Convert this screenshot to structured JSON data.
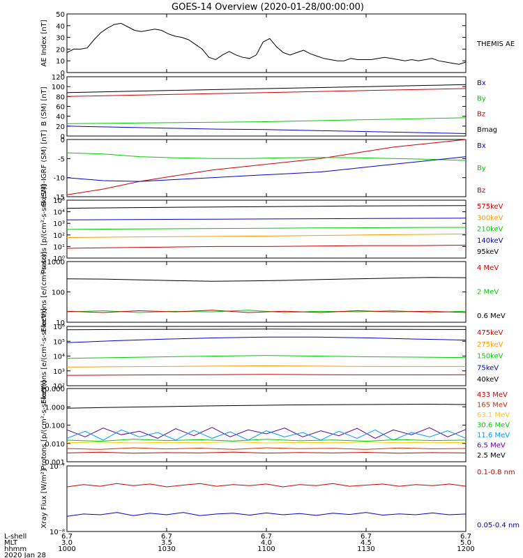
{
  "title": "GOES-14 Overview (2020-01-28/00:00:00)",
  "chart_data": [
    {
      "type": "line",
      "ylabel": "AE Index [nT]",
      "ylog": false,
      "ylim": [
        0,
        50
      ],
      "yticks": [
        "0",
        "10",
        "20",
        "30",
        "40",
        "50"
      ],
      "legend": [
        {
          "name": "THEMIS AE",
          "color": "#000000"
        }
      ],
      "series": [
        {
          "name": "THEMIS AE",
          "color": "#000000",
          "values": [
            17,
            20,
            20,
            21,
            28,
            34,
            38,
            41,
            42,
            39,
            36,
            35,
            36,
            37,
            36,
            33,
            31,
            30,
            28,
            24,
            20,
            13,
            11,
            15,
            18,
            15,
            13,
            12,
            15,
            26,
            29,
            22,
            17,
            15,
            17,
            19,
            16,
            14,
            12,
            11,
            10,
            10,
            12,
            11,
            11,
            11,
            12,
            13,
            12,
            11,
            10,
            11,
            10,
            11,
            12,
            10,
            9,
            8,
            7,
            9
          ]
        }
      ]
    },
    {
      "type": "line",
      "ylabel": "B (SM) [nT]",
      "ylog": false,
      "ylim": [
        0,
        120
      ],
      "yticks": [
        "0",
        "20",
        "40",
        "60",
        "80",
        "100",
        "120"
      ],
      "legend": [
        {
          "name": "Bx",
          "color": "#0000cc"
        },
        {
          "name": "By",
          "color": "#00cc00"
        },
        {
          "name": "Bz",
          "color": "#cc0000"
        },
        {
          "name": "Bmag",
          "color": "#000000"
        }
      ],
      "series": [
        {
          "name": "Bmag",
          "color": "#000000",
          "values": [
            88,
            90,
            92,
            94,
            96,
            98,
            100,
            102,
            104
          ]
        },
        {
          "name": "Bz",
          "color": "#cc0000",
          "values": [
            80,
            82,
            84,
            86,
            88,
            90,
            92,
            94,
            96
          ]
        },
        {
          "name": "By",
          "color": "#00cc00",
          "values": [
            25,
            26,
            27,
            28,
            29,
            31,
            33,
            35,
            37
          ]
        },
        {
          "name": "Bx",
          "color": "#0000cc",
          "values": [
            20,
            18,
            16,
            14,
            13,
            11,
            9,
            7,
            5
          ]
        }
      ]
    },
    {
      "type": "line",
      "ylabel": "B (SM)-IGRF (SM) [nT]",
      "ylog": false,
      "ylim": [
        -15,
        0
      ],
      "yticks": [
        "-15",
        "-10",
        "-5",
        "0"
      ],
      "legend": [
        {
          "name": "Bx",
          "color": "#0000cc"
        },
        {
          "name": "By",
          "color": "#00cc00"
        },
        {
          "name": "Bz",
          "color": "#cc0000"
        }
      ],
      "series": [
        {
          "name": "Bz",
          "color": "#cc0000",
          "values": [
            -14.5,
            -13,
            -11,
            -9.5,
            -8,
            -7,
            -6,
            -5,
            -3.5,
            -2,
            -1,
            0
          ]
        },
        {
          "name": "By",
          "color": "#00cc00",
          "values": [
            -3.5,
            -3.8,
            -4.5,
            -4.8,
            -5,
            -5,
            -4.8,
            -4.7,
            -4.8,
            -5,
            -5.2,
            -5.5
          ]
        },
        {
          "name": "Bx",
          "color": "#0000cc",
          "values": [
            -10,
            -10.8,
            -11,
            -10.5,
            -10,
            -9.5,
            -9,
            -8.5,
            -7.5,
            -6.5,
            -5.5,
            -4.5
          ]
        }
      ]
    },
    {
      "type": "line",
      "ylabel": "Protons [p/(cm²-s-sr-keV)]",
      "ylog": true,
      "ylim": [
        1,
        100000
      ],
      "yticks": [
        "10⁰",
        "10¹",
        "10²",
        "10³",
        "10⁴",
        "10⁵"
      ],
      "legend": [
        {
          "name": "575keV",
          "color": "#cc0000"
        },
        {
          "name": "300keV",
          "color": "#ff9900"
        },
        {
          "name": "210keV",
          "color": "#00cc00"
        },
        {
          "name": "140keV",
          "color": "#0000cc"
        },
        {
          "name": "95keV",
          "color": "#000000"
        }
      ],
      "series": [
        {
          "name": "95keV",
          "color": "#000000",
          "values": [
            20000,
            22000,
            24000,
            26000,
            28000,
            30000,
            32000,
            33000,
            34000
          ]
        },
        {
          "name": "140keV",
          "color": "#0000cc",
          "values": [
            2000,
            2100,
            2200,
            2300,
            2400,
            2500,
            2600,
            2700,
            2800
          ]
        },
        {
          "name": "210keV",
          "color": "#00cc00",
          "values": [
            300,
            320,
            340,
            360,
            380,
            400,
            420,
            440,
            450
          ]
        },
        {
          "name": "300keV",
          "color": "#ff9900",
          "values": [
            60,
            65,
            70,
            75,
            80,
            90,
            100,
            110,
            120
          ]
        },
        {
          "name": "575keV",
          "color": "#cc0000",
          "values": [
            7,
            8,
            9,
            10,
            10,
            11,
            12,
            12,
            13
          ]
        }
      ]
    },
    {
      "type": "line",
      "ylabel": "Electrons [e/(cm²-s-sr)]",
      "ylog": true,
      "ylim": [
        10,
        1000
      ],
      "yticks": [
        "10",
        "100",
        "1000"
      ],
      "legend": [
        {
          "name": "4 MeV",
          "color": "#cc0000"
        },
        {
          "name": "2 MeV",
          "color": "#00cc00"
        },
        {
          "name": "0.6 MeV",
          "color": "#000000"
        }
      ],
      "series": [
        {
          "name": "0.6 MeV",
          "color": "#000000",
          "values": [
            270,
            265,
            250,
            235,
            225,
            230,
            240,
            255,
            270,
            285,
            300,
            295
          ]
        },
        {
          "name": "2 MeV",
          "color": "#00cc00",
          "values": [
            22,
            24,
            21,
            23,
            22,
            25,
            21,
            23,
            22,
            24,
            21,
            23
          ]
        },
        {
          "name": "4 MeV",
          "color": "#cc0000",
          "values": [
            23,
            21,
            24,
            22,
            25,
            21,
            23,
            21,
            24,
            22,
            23,
            21
          ]
        }
      ]
    },
    {
      "type": "line",
      "ylabel": "Electrons [e/(cm²-s-sr-keV)]",
      "ylog": true,
      "ylim": [
        100,
        1000000
      ],
      "yticks": [
        "10²",
        "10³",
        "10⁴",
        "10⁵",
        "10⁶"
      ],
      "legend": [
        {
          "name": "475keV",
          "color": "#cc0000"
        },
        {
          "name": "275keV",
          "color": "#ff9900"
        },
        {
          "name": "150keV",
          "color": "#00cc00"
        },
        {
          "name": "75keV",
          "color": "#0000cc"
        },
        {
          "name": "40keV",
          "color": "#000000"
        }
      ],
      "series": [
        {
          "name": "40keV",
          "color": "#000000",
          "values": [
            600000,
            620000,
            640000,
            650000,
            660000,
            650000,
            640000,
            630000,
            620000
          ]
        },
        {
          "name": "75keV",
          "color": "#0000cc",
          "values": [
            80000,
            110000,
            140000,
            170000,
            190000,
            190000,
            170000,
            140000,
            120000
          ]
        },
        {
          "name": "150keV",
          "color": "#00cc00",
          "values": [
            7000,
            8000,
            9000,
            10000,
            11000,
            10000,
            9000,
            8500,
            8000
          ]
        },
        {
          "name": "275keV",
          "color": "#ff9900",
          "values": [
            1800,
            1900,
            2000,
            2100,
            2200,
            2100,
            2000,
            2000,
            2000
          ]
        },
        {
          "name": "475keV",
          "color": "#cc0000",
          "values": [
            500,
            520,
            540,
            560,
            580,
            560,
            540,
            540,
            550
          ]
        }
      ]
    },
    {
      "type": "line",
      "ylabel": "Protons [p/(cm²-s-sr-keV)]",
      "ylog": true,
      "ylim": [
        0.001,
        100
      ],
      "yticks": [
        "0.001",
        "0.010",
        "0.100",
        "1.000",
        "10.000"
      ],
      "legend": [
        {
          "name": "433 MeV",
          "color": "#cc0000"
        },
        {
          "name": "165 MeV",
          "color": "#cc3300"
        },
        {
          "name": "63.1 MeV",
          "color": "#ffcc00"
        },
        {
          "name": "30.6 MeV",
          "color": "#00cc00"
        },
        {
          "name": "11.6 MeV",
          "color": "#0099ff"
        },
        {
          "name": "6.5 MeV",
          "color": "#660099"
        },
        {
          "name": "2.5 MeV",
          "color": "#000000"
        }
      ],
      "series": [
        {
          "name": "2.5 MeV",
          "color": "#000000",
          "values": [
            4.5,
            5,
            5.5,
            6,
            6.5,
            7,
            7.5,
            7.8,
            8,
            8.2,
            8.5,
            8
          ]
        },
        {
          "name": "6.5 MeV",
          "color": "#660099",
          "values": [
            0.15,
            0.05,
            0.2,
            0.07,
            0.12,
            0.04,
            0.18,
            0.06,
            0.22,
            0.05,
            0.15,
            0.08,
            0.2,
            0.05,
            0.13,
            0.06,
            0.19,
            0.04,
            0.15,
            0.07,
            0.21,
            0.05,
            0.16
          ]
        },
        {
          "name": "11.6 MeV",
          "color": "#0099ff",
          "values": [
            0.04,
            0.12,
            0.03,
            0.15,
            0.05,
            0.1,
            0.03,
            0.14,
            0.04,
            0.11,
            0.03,
            0.13,
            0.05,
            0.1,
            0.03,
            0.12,
            0.04,
            0.15,
            0.03,
            0.1,
            0.05,
            0.13,
            0.04
          ]
        },
        {
          "name": "30.6 MeV",
          "color": "#00cc00",
          "values": [
            0.03,
            0.025,
            0.035,
            0.028,
            0.032,
            0.026,
            0.034,
            0.027,
            0.031,
            0.025,
            0.033,
            0.028,
            0.03
          ]
        },
        {
          "name": "63.1 MeV",
          "color": "#ffcc00",
          "values": [
            0.02,
            0.022,
            0.019,
            0.021,
            0.02,
            0.023,
            0.019,
            0.021,
            0.02,
            0.022,
            0.02,
            0.021,
            0.02
          ]
        },
        {
          "name": "165 MeV",
          "color": "#cc3300",
          "values": [
            0.008,
            0.007,
            0.009,
            0.0075,
            0.0085,
            0.007,
            0.009,
            0.0078,
            0.0082,
            0.007,
            0.0088,
            0.0076,
            0.008
          ]
        },
        {
          "name": "433 MeV",
          "color": "#cc0000",
          "values": [
            0.004,
            0.0045,
            0.0038,
            0.0042,
            0.004,
            0.0046,
            0.0039,
            0.0043,
            0.004,
            0.0044,
            0.0038,
            0.0042,
            0.004
          ]
        }
      ]
    },
    {
      "type": "line",
      "ylabel": "Xray Flux [W/m²]",
      "ylog": true,
      "ylim": [
        1e-08,
        1e-07
      ],
      "yticks": [
        "10⁻⁸",
        "10⁻⁷"
      ],
      "legend": [
        {
          "name": "0.1-0.8 nm",
          "color": "#cc0000"
        },
        {
          "name": "0.05-0.4 nm",
          "color": "#0000cc"
        }
      ],
      "series": [
        {
          "name": "0.1-0.8 nm",
          "color": "#cc0000",
          "values": [
            4.8e-08,
            5.2e-08,
            4.9e-08,
            5.4e-08,
            5e-08,
            5.3e-08,
            4.8e-08,
            5.1e-08,
            5.4e-08,
            4.9e-08,
            5.2e-08,
            5e-08,
            5.3e-08,
            4.8e-08,
            5.2e-08,
            5e-08,
            5.4e-08,
            4.9e-08,
            5.1e-08,
            5.3e-08,
            4.9e-08,
            5.2e-08,
            5e-08,
            5.3e-08,
            4.9e-08
          ]
        },
        {
          "name": "0.05-0.4 nm",
          "color": "#0000cc",
          "values": [
            1.7e-08,
            1.85e-08,
            1.8e-08,
            1.95e-08,
            1.75e-08,
            1.9e-08,
            1.8e-08,
            1.95e-08,
            1.75e-08,
            1.85e-08,
            1.9e-08,
            1.78e-08,
            1.92e-08,
            1.8e-08,
            1.88e-08,
            1.76e-08,
            1.9e-08,
            1.82e-08,
            1.95e-08,
            1.78e-08,
            1.86e-08,
            1.8e-08,
            1.92e-08,
            1.8e-08,
            1.85e-08
          ]
        }
      ]
    }
  ],
  "x_axis": {
    "row_labels": [
      "L-shell",
      "MLT",
      "hhmm",
      "2020 Jan 28"
    ],
    "ticks": [
      {
        "lshell": "6.7",
        "mlt": "3.0",
        "hhmm": "1000"
      },
      {
        "lshell": "6.7",
        "mlt": "3.5",
        "hhmm": "1030"
      },
      {
        "lshell": "6.7",
        "mlt": "4.0",
        "hhmm": "1100"
      },
      {
        "lshell": "6.7",
        "mlt": "4.5",
        "hhmm": "1130"
      },
      {
        "lshell": "6.7",
        "mlt": "5.0",
        "hhmm": "1200"
      }
    ]
  }
}
